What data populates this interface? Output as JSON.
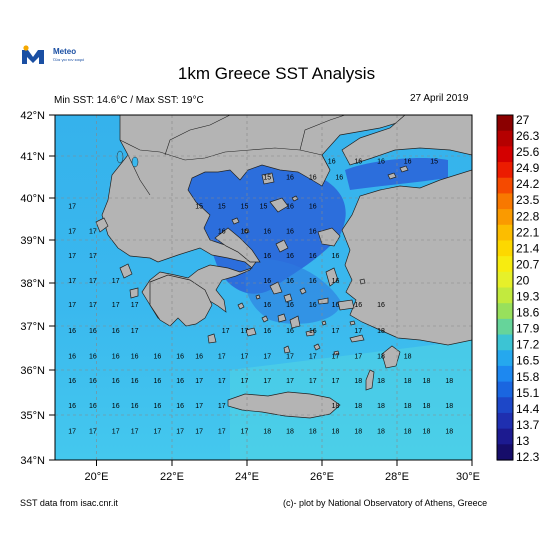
{
  "logo": {
    "brand": "Meteo",
    "tagline": "Όλα για τον καιρό"
  },
  "title": "1km Greece SST Analysis",
  "min_max": "Min SST: 14.6°C / Max SST: 19°C",
  "date": "27 April 2019",
  "source": "SST data from isac.cnr.it",
  "credit": "(c)- plot by National Observatory of Athens, Greece",
  "map": {
    "lon_range": [
      19,
      30
    ],
    "lat_range": [
      34,
      42
    ],
    "lon_ticks": [
      "20°E",
      "22°E",
      "24°E",
      "26°E",
      "28°E",
      "30°E"
    ],
    "lat_ticks": [
      "42°N",
      "41°N",
      "40°N",
      "39°N",
      "38°N",
      "37°N",
      "36°N",
      "35°N",
      "34°N"
    ],
    "grid": true,
    "land_color": "#b4b4b4",
    "sea_color_warm": "#3ec0ee",
    "sea_color_cool": "#2a66d8",
    "sst_labels": [
      {
        "lon": 26.3,
        "lat": 40.88,
        "text": "16"
      },
      {
        "lon": 27.0,
        "lat": 40.88,
        "text": "16"
      },
      {
        "lon": 27.6,
        "lat": 40.88,
        "text": "16"
      },
      {
        "lon": 28.3,
        "lat": 40.88,
        "text": "16"
      },
      {
        "lon": 29.0,
        "lat": 40.88,
        "text": "15"
      },
      {
        "lon": 24.6,
        "lat": 40.5,
        "text": "15"
      },
      {
        "lon": 25.2,
        "lat": 40.5,
        "text": "16"
      },
      {
        "lon": 25.8,
        "lat": 40.5,
        "text": "16"
      },
      {
        "lon": 26.5,
        "lat": 40.5,
        "text": "16"
      },
      {
        "lon": 19.45,
        "lat": 39.83,
        "text": "17"
      },
      {
        "lon": 22.8,
        "lat": 39.83,
        "text": "15"
      },
      {
        "lon": 23.4,
        "lat": 39.83,
        "text": "15"
      },
      {
        "lon": 24.0,
        "lat": 39.83,
        "text": "15"
      },
      {
        "lon": 24.5,
        "lat": 39.83,
        "text": "15"
      },
      {
        "lon": 25.2,
        "lat": 39.83,
        "text": "16"
      },
      {
        "lon": 25.8,
        "lat": 39.83,
        "text": "16"
      },
      {
        "lon": 19.45,
        "lat": 39.25,
        "text": "17"
      },
      {
        "lon": 20.0,
        "lat": 39.25,
        "text": "17"
      },
      {
        "lon": 23.4,
        "lat": 39.25,
        "text": "16"
      },
      {
        "lon": 24.0,
        "lat": 39.25,
        "text": "16"
      },
      {
        "lon": 24.6,
        "lat": 39.25,
        "text": "16"
      },
      {
        "lon": 25.2,
        "lat": 39.25,
        "text": "16"
      },
      {
        "lon": 25.8,
        "lat": 39.25,
        "text": "16"
      },
      {
        "lon": 19.45,
        "lat": 38.68,
        "text": "17"
      },
      {
        "lon": 20.0,
        "lat": 38.68,
        "text": "17"
      },
      {
        "lon": 24.6,
        "lat": 38.68,
        "text": "16"
      },
      {
        "lon": 25.2,
        "lat": 38.68,
        "text": "16"
      },
      {
        "lon": 25.8,
        "lat": 38.68,
        "text": "16"
      },
      {
        "lon": 26.4,
        "lat": 38.68,
        "text": "16"
      },
      {
        "lon": 19.45,
        "lat": 38.1,
        "text": "17"
      },
      {
        "lon": 20.0,
        "lat": 38.1,
        "text": "17"
      },
      {
        "lon": 20.6,
        "lat": 38.1,
        "text": "17"
      },
      {
        "lon": 24.6,
        "lat": 38.1,
        "text": "16"
      },
      {
        "lon": 25.2,
        "lat": 38.1,
        "text": "16"
      },
      {
        "lon": 25.8,
        "lat": 38.1,
        "text": "16"
      },
      {
        "lon": 26.4,
        "lat": 38.1,
        "text": "16"
      },
      {
        "lon": 19.45,
        "lat": 37.55,
        "text": "17"
      },
      {
        "lon": 20.0,
        "lat": 37.55,
        "text": "17"
      },
      {
        "lon": 20.6,
        "lat": 37.55,
        "text": "17"
      },
      {
        "lon": 21.1,
        "lat": 37.55,
        "text": "17"
      },
      {
        "lon": 24.6,
        "lat": 37.55,
        "text": "16"
      },
      {
        "lon": 25.2,
        "lat": 37.55,
        "text": "16"
      },
      {
        "lon": 25.8,
        "lat": 37.55,
        "text": "16"
      },
      {
        "lon": 26.4,
        "lat": 37.55,
        "text": "16"
      },
      {
        "lon": 27.0,
        "lat": 37.55,
        "text": "16"
      },
      {
        "lon": 27.6,
        "lat": 37.55,
        "text": "16"
      },
      {
        "lon": 19.45,
        "lat": 36.95,
        "text": "16"
      },
      {
        "lon": 20.0,
        "lat": 36.95,
        "text": "16"
      },
      {
        "lon": 20.6,
        "lat": 36.95,
        "text": "16"
      },
      {
        "lon": 21.1,
        "lat": 36.95,
        "text": "17"
      },
      {
        "lon": 23.5,
        "lat": 36.95,
        "text": "17"
      },
      {
        "lon": 24.0,
        "lat": 36.95,
        "text": "17"
      },
      {
        "lon": 24.6,
        "lat": 36.95,
        "text": "16"
      },
      {
        "lon": 25.2,
        "lat": 36.95,
        "text": "16"
      },
      {
        "lon": 25.8,
        "lat": 36.95,
        "text": "16"
      },
      {
        "lon": 26.4,
        "lat": 36.95,
        "text": "17"
      },
      {
        "lon": 27.0,
        "lat": 36.95,
        "text": "17"
      },
      {
        "lon": 27.6,
        "lat": 36.95,
        "text": "18"
      },
      {
        "lon": 19.45,
        "lat": 36.35,
        "text": "16"
      },
      {
        "lon": 20.0,
        "lat": 36.35,
        "text": "16"
      },
      {
        "lon": 20.6,
        "lat": 36.35,
        "text": "16"
      },
      {
        "lon": 21.1,
        "lat": 36.35,
        "text": "16"
      },
      {
        "lon": 21.7,
        "lat": 36.35,
        "text": "16"
      },
      {
        "lon": 22.3,
        "lat": 36.35,
        "text": "16"
      },
      {
        "lon": 22.8,
        "lat": 36.35,
        "text": "16"
      },
      {
        "lon": 23.4,
        "lat": 36.35,
        "text": "17"
      },
      {
        "lon": 24.0,
        "lat": 36.35,
        "text": "17"
      },
      {
        "lon": 24.6,
        "lat": 36.35,
        "text": "17"
      },
      {
        "lon": 25.2,
        "lat": 36.35,
        "text": "17"
      },
      {
        "lon": 25.8,
        "lat": 36.35,
        "text": "17"
      },
      {
        "lon": 26.4,
        "lat": 36.35,
        "text": "17"
      },
      {
        "lon": 27.0,
        "lat": 36.35,
        "text": "17"
      },
      {
        "lon": 27.6,
        "lat": 36.35,
        "text": "18"
      },
      {
        "lon": 28.3,
        "lat": 36.35,
        "text": "18"
      },
      {
        "lon": 19.45,
        "lat": 35.78,
        "text": "16"
      },
      {
        "lon": 20.0,
        "lat": 35.78,
        "text": "16"
      },
      {
        "lon": 20.6,
        "lat": 35.78,
        "text": "16"
      },
      {
        "lon": 21.1,
        "lat": 35.78,
        "text": "16"
      },
      {
        "lon": 21.7,
        "lat": 35.78,
        "text": "16"
      },
      {
        "lon": 22.3,
        "lat": 35.78,
        "text": "16"
      },
      {
        "lon": 22.8,
        "lat": 35.78,
        "text": "17"
      },
      {
        "lon": 23.4,
        "lat": 35.78,
        "text": "17"
      },
      {
        "lon": 24.0,
        "lat": 35.78,
        "text": "17"
      },
      {
        "lon": 24.6,
        "lat": 35.78,
        "text": "17"
      },
      {
        "lon": 25.2,
        "lat": 35.78,
        "text": "17"
      },
      {
        "lon": 25.8,
        "lat": 35.78,
        "text": "17"
      },
      {
        "lon": 26.4,
        "lat": 35.78,
        "text": "17"
      },
      {
        "lon": 27.0,
        "lat": 35.78,
        "text": "18"
      },
      {
        "lon": 27.6,
        "lat": 35.78,
        "text": "18"
      },
      {
        "lon": 28.3,
        "lat": 35.78,
        "text": "18"
      },
      {
        "lon": 28.8,
        "lat": 35.78,
        "text": "18"
      },
      {
        "lon": 29.4,
        "lat": 35.78,
        "text": "18"
      },
      {
        "lon": 19.45,
        "lat": 35.2,
        "text": "16"
      },
      {
        "lon": 20.0,
        "lat": 35.2,
        "text": "16"
      },
      {
        "lon": 20.6,
        "lat": 35.2,
        "text": "16"
      },
      {
        "lon": 21.1,
        "lat": 35.2,
        "text": "16"
      },
      {
        "lon": 21.7,
        "lat": 35.2,
        "text": "16"
      },
      {
        "lon": 22.3,
        "lat": 35.2,
        "text": "16"
      },
      {
        "lon": 22.8,
        "lat": 35.2,
        "text": "17"
      },
      {
        "lon": 23.4,
        "lat": 35.2,
        "text": "17"
      },
      {
        "lon": 26.4,
        "lat": 35.2,
        "text": "18"
      },
      {
        "lon": 27.0,
        "lat": 35.2,
        "text": "18"
      },
      {
        "lon": 27.6,
        "lat": 35.2,
        "text": "18"
      },
      {
        "lon": 28.3,
        "lat": 35.2,
        "text": "18"
      },
      {
        "lon": 28.8,
        "lat": 35.2,
        "text": "18"
      },
      {
        "lon": 29.4,
        "lat": 35.2,
        "text": "18"
      },
      {
        "lon": 19.45,
        "lat": 34.62,
        "text": "17"
      },
      {
        "lon": 20.0,
        "lat": 34.62,
        "text": "17"
      },
      {
        "lon": 20.6,
        "lat": 34.62,
        "text": "17"
      },
      {
        "lon": 21.1,
        "lat": 34.62,
        "text": "17"
      },
      {
        "lon": 21.7,
        "lat": 34.62,
        "text": "17"
      },
      {
        "lon": 22.3,
        "lat": 34.62,
        "text": "17"
      },
      {
        "lon": 22.8,
        "lat": 34.62,
        "text": "17"
      },
      {
        "lon": 23.4,
        "lat": 34.62,
        "text": "17"
      },
      {
        "lon": 24.0,
        "lat": 34.62,
        "text": "17"
      },
      {
        "lon": 24.6,
        "lat": 34.62,
        "text": "18"
      },
      {
        "lon": 25.2,
        "lat": 34.62,
        "text": "18"
      },
      {
        "lon": 25.8,
        "lat": 34.62,
        "text": "18"
      },
      {
        "lon": 26.4,
        "lat": 34.62,
        "text": "18"
      },
      {
        "lon": 27.0,
        "lat": 34.62,
        "text": "18"
      },
      {
        "lon": 27.6,
        "lat": 34.62,
        "text": "18"
      },
      {
        "lon": 28.3,
        "lat": 34.62,
        "text": "18"
      },
      {
        "lon": 28.8,
        "lat": 34.62,
        "text": "18"
      },
      {
        "lon": 29.4,
        "lat": 34.62,
        "text": "18"
      }
    ]
  },
  "colorbar": {
    "labels": [
      "27",
      "26.3",
      "25.6",
      "24.9",
      "24.2",
      "23.5",
      "22.8",
      "22.1",
      "21.4",
      "20.7",
      "20",
      "19.3",
      "18.6",
      "17.9",
      "17.2",
      "16.5",
      "15.8",
      "15.1",
      "14.4",
      "13.7",
      "13",
      "12.3"
    ],
    "colors": [
      "#8b0000",
      "#b50000",
      "#d40000",
      "#ec1c00",
      "#f54a00",
      "#f87800",
      "#fa9a00",
      "#fcbd00",
      "#fdd800",
      "#f7ec10",
      "#e6f02a",
      "#c2ea3e",
      "#98e05c",
      "#66d49a",
      "#3cc4d4",
      "#25a8ee",
      "#1d88f0",
      "#1a66e0",
      "#1d47c8",
      "#1f2fb0",
      "#1c1a90",
      "#160d6a"
    ]
  }
}
